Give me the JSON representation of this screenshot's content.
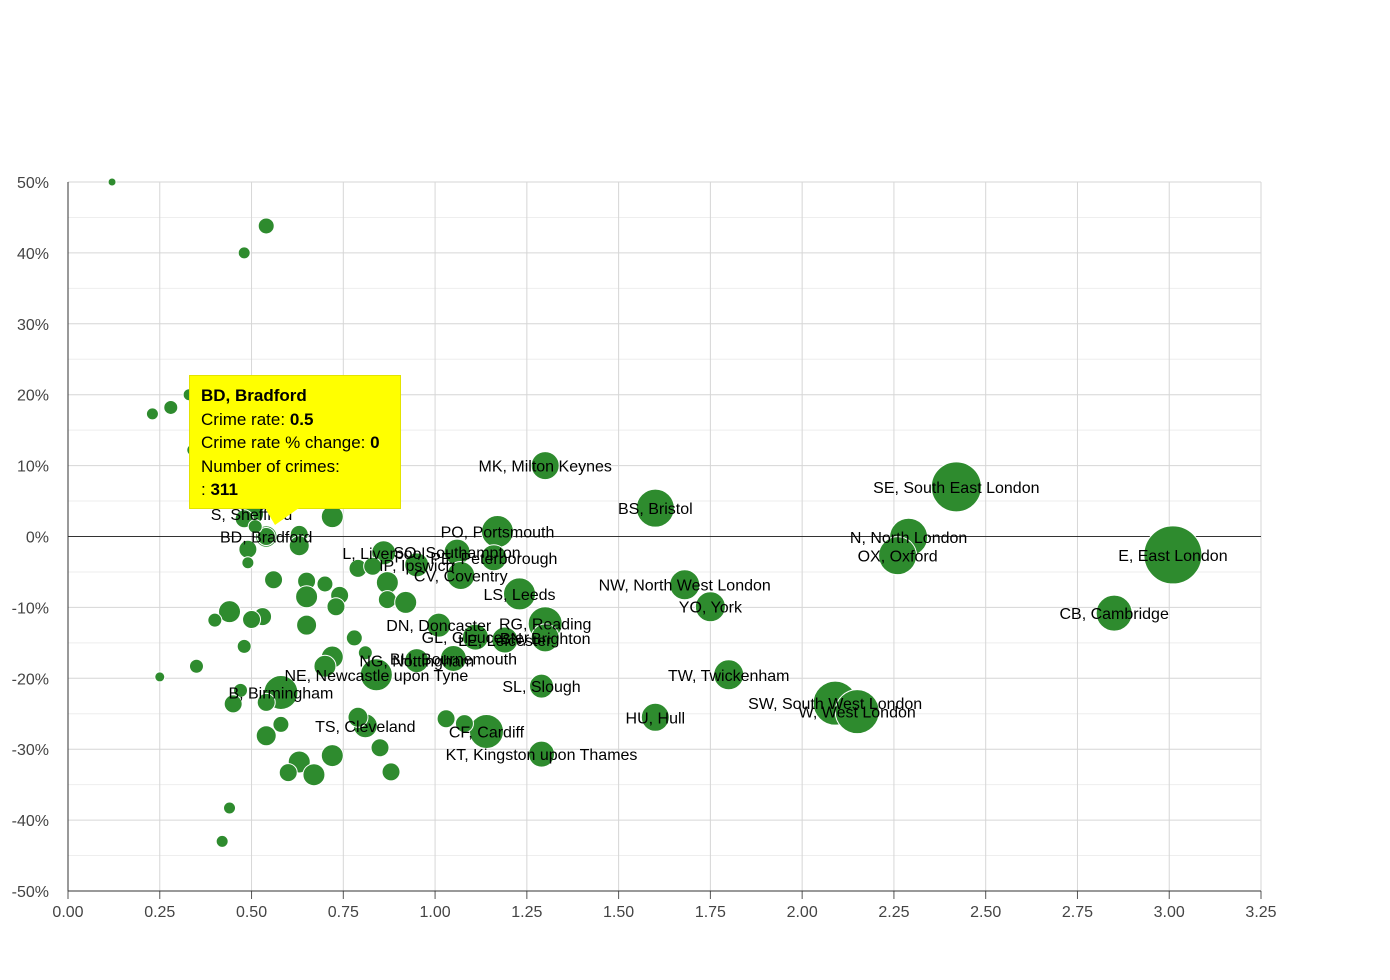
{
  "colors": {
    "bubble": "#2e8b2e",
    "bubble_stroke": "#ffffff",
    "tooltip_bg": "#ffff00",
    "axis": "#333333"
  },
  "chart_data": {
    "type": "scatter",
    "xlim": [
      0,
      3.25
    ],
    "ylim": [
      -50,
      50
    ],
    "x_ticks": [
      "0.00",
      "0.25",
      "0.50",
      "0.75",
      "1.00",
      "1.25",
      "1.50",
      "1.75",
      "2.00",
      "2.25",
      "2.50",
      "2.75",
      "3.00",
      "3.25"
    ],
    "y_ticks": [
      "50%",
      "40%",
      "30%",
      "20%",
      "10%",
      "0%",
      "-10%",
      "-20%",
      "-30%",
      "-40%",
      "-50%"
    ],
    "grid": true,
    "points": [
      {
        "label": "MK, Milton Keynes",
        "x": 1.3,
        "y": 10,
        "r": 14
      },
      {
        "label": "SE, South East London",
        "x": 2.42,
        "y": 7,
        "r": 25
      },
      {
        "label": "BS, Bristol",
        "x": 1.6,
        "y": 4,
        "r": 19
      },
      {
        "label": "PO, Portsmouth",
        "x": 1.17,
        "y": 0.7,
        "r": 16
      },
      {
        "label": "N, North London",
        "x": 2.29,
        "y": -0.1,
        "r": 19
      },
      {
        "label": "OX, Oxford",
        "x": 2.26,
        "y": -2.7,
        "r": 19
      },
      {
        "label": "E, East London",
        "x": 3.01,
        "y": -2.6,
        "r": 29
      },
      {
        "label": "NW, North West London",
        "x": 1.68,
        "y": -6.8,
        "r": 15
      },
      {
        "label": "YO, York",
        "x": 1.75,
        "y": -9.9,
        "r": 15
      },
      {
        "label": "CB, Cambridge",
        "x": 2.85,
        "y": -10.8,
        "r": 18
      },
      {
        "label": "LS, Leeds",
        "x": 1.23,
        "y": -8.1,
        "r": 16
      },
      {
        "label": "RG, Reading",
        "x": 1.3,
        "y": -12.3,
        "r": 17
      },
      {
        "label": "BN, Brighton",
        "x": 1.3,
        "y": -14.3,
        "r": 14
      },
      {
        "label": "SO, Southampton",
        "x": 1.06,
        "y": -2.2,
        "r": 13
      },
      {
        "label": "PE, Peterborough",
        "x": 1.16,
        "y": -3.0,
        "r": 13
      },
      {
        "label": "CV, Coventry",
        "x": 1.07,
        "y": -5.5,
        "r": 14
      },
      {
        "label": "L, Liverpool",
        "x": 0.86,
        "y": -2.3,
        "r": 12
      },
      {
        "label": "IP, Ipswich",
        "x": 0.95,
        "y": -4.0,
        "r": 12
      },
      {
        "label": "DN, Doncaster",
        "x": 1.01,
        "y": -12.5,
        "r": 12
      },
      {
        "label": "GL, Gloucester",
        "x": 1.11,
        "y": -14.2,
        "r": 13
      },
      {
        "label": "LE, Leicester",
        "x": 1.19,
        "y": -14.6,
        "r": 13
      },
      {
        "label": "BH, Bournemouth",
        "x": 1.05,
        "y": -17.2,
        "r": 13
      },
      {
        "label": "NG, Nottingham",
        "x": 0.95,
        "y": -17.5,
        "r": 12
      },
      {
        "label": "NE, Newcastle upon Tyne",
        "x": 0.84,
        "y": -19.5,
        "r": 16
      },
      {
        "label": "B, Birmingham",
        "x": 0.58,
        "y": -22.0,
        "r": 17
      },
      {
        "label": "TS, Cleveland",
        "x": 0.81,
        "y": -26.7,
        "r": 12
      },
      {
        "label": "CF, Cardiff",
        "x": 1.14,
        "y": -27.5,
        "r": 17
      },
      {
        "label": "SL, Slough",
        "x": 1.29,
        "y": -21.1,
        "r": 12
      },
      {
        "label": "KT, Kingston upon Thames",
        "x": 1.29,
        "y": -30.7,
        "r": 13
      },
      {
        "label": "TW, Twickenham",
        "x": 1.8,
        "y": -19.5,
        "r": 15
      },
      {
        "label": "HU, Hull",
        "x": 1.6,
        "y": -25.5,
        "r": 14
      },
      {
        "label": "SW, South West London",
        "x": 2.09,
        "y": -23.5,
        "r": 22
      },
      {
        "label": "W, West London",
        "x": 2.15,
        "y": -24.7,
        "r": 22
      },
      {
        "label": "S, Sheffield",
        "x": 0.5,
        "y": 3.2,
        "r": 12
      },
      {
        "label": "BD, Bradford",
        "x": 0.54,
        "y": 0,
        "r": 11,
        "highlight": true
      },
      {
        "label": "",
        "x": 0.12,
        "y": 50,
        "r": 4
      },
      {
        "label": "",
        "x": 0.54,
        "y": 43.8,
        "r": 8
      },
      {
        "label": "",
        "x": 0.48,
        "y": 40,
        "r": 6
      },
      {
        "label": "",
        "x": 0.33,
        "y": 20,
        "r": 6
      },
      {
        "label": "",
        "x": 0.28,
        "y": 18.2,
        "r": 7
      },
      {
        "label": "",
        "x": 0.23,
        "y": 17.3,
        "r": 6
      },
      {
        "label": "",
        "x": 0.34,
        "y": 12.2,
        "r": 6
      },
      {
        "label": "",
        "x": 0.72,
        "y": 2.8,
        "r": 11
      },
      {
        "label": "",
        "x": 0.48,
        "y": 2.5,
        "r": 9
      },
      {
        "label": "",
        "x": 0.63,
        "y": 0.3,
        "r": 9
      },
      {
        "label": "",
        "x": 0.51,
        "y": 1.4,
        "r": 7
      },
      {
        "label": "",
        "x": 0.63,
        "y": -1.3,
        "r": 10
      },
      {
        "label": "",
        "x": 0.49,
        "y": -1.8,
        "r": 9
      },
      {
        "label": "",
        "x": 0.49,
        "y": -3.7,
        "r": 6
      },
      {
        "label": "",
        "x": 0.56,
        "y": -6.1,
        "r": 9
      },
      {
        "label": "",
        "x": 0.65,
        "y": -6.3,
        "r": 9
      },
      {
        "label": "",
        "x": 0.7,
        "y": -6.7,
        "r": 8
      },
      {
        "label": "",
        "x": 0.65,
        "y": -8.5,
        "r": 11
      },
      {
        "label": "",
        "x": 0.74,
        "y": -8.3,
        "r": 9
      },
      {
        "label": "",
        "x": 0.73,
        "y": -9.9,
        "r": 9
      },
      {
        "label": "",
        "x": 0.87,
        "y": -6.5,
        "r": 11
      },
      {
        "label": "",
        "x": 0.87,
        "y": -8.9,
        "r": 9
      },
      {
        "label": "",
        "x": 0.92,
        "y": -9.3,
        "r": 11
      },
      {
        "label": "",
        "x": 0.79,
        "y": -4.5,
        "r": 9
      },
      {
        "label": "",
        "x": 0.83,
        "y": -4.2,
        "r": 9
      },
      {
        "label": "",
        "x": 0.44,
        "y": -10.6,
        "r": 11
      },
      {
        "label": "",
        "x": 0.4,
        "y": -11.8,
        "r": 7
      },
      {
        "label": "",
        "x": 0.53,
        "y": -11.3,
        "r": 9
      },
      {
        "label": "",
        "x": 0.5,
        "y": -11.7,
        "r": 9
      },
      {
        "label": "",
        "x": 0.65,
        "y": -12.5,
        "r": 10
      },
      {
        "label": "",
        "x": 0.48,
        "y": -15.5,
        "r": 7
      },
      {
        "label": "",
        "x": 0.78,
        "y": -14.3,
        "r": 8
      },
      {
        "label": "",
        "x": 0.81,
        "y": -16.4,
        "r": 7
      },
      {
        "label": "",
        "x": 0.72,
        "y": -17.0,
        "r": 11
      },
      {
        "label": "",
        "x": 0.7,
        "y": -18.3,
        "r": 11
      },
      {
        "label": "",
        "x": 0.35,
        "y": -18.3,
        "r": 7
      },
      {
        "label": "",
        "x": 0.25,
        "y": -19.8,
        "r": 5
      },
      {
        "label": "",
        "x": 0.47,
        "y": -21.7,
        "r": 7
      },
      {
        "label": "",
        "x": 0.45,
        "y": -23.6,
        "r": 9
      },
      {
        "label": "",
        "x": 0.54,
        "y": -23.4,
        "r": 9
      },
      {
        "label": "",
        "x": 0.58,
        "y": -26.5,
        "r": 8
      },
      {
        "label": "",
        "x": 0.54,
        "y": -28.1,
        "r": 10
      },
      {
        "label": "",
        "x": 0.79,
        "y": -25.5,
        "r": 10
      },
      {
        "label": "",
        "x": 1.03,
        "y": -25.7,
        "r": 9
      },
      {
        "label": "",
        "x": 1.08,
        "y": -26.4,
        "r": 9
      },
      {
        "label": "",
        "x": 0.85,
        "y": -29.8,
        "r": 9
      },
      {
        "label": "",
        "x": 0.72,
        "y": -30.9,
        "r": 11
      },
      {
        "label": "",
        "x": 0.63,
        "y": -31.8,
        "r": 11
      },
      {
        "label": "",
        "x": 0.6,
        "y": -33.3,
        "r": 9
      },
      {
        "label": "",
        "x": 0.67,
        "y": -33.6,
        "r": 11
      },
      {
        "label": "",
        "x": 0.88,
        "y": -33.2,
        "r": 9
      },
      {
        "label": "",
        "x": 0.44,
        "y": -38.3,
        "r": 6
      },
      {
        "label": "",
        "x": 0.42,
        "y": -43.0,
        "r": 6
      }
    ],
    "tooltip": {
      "title": "BD, Bradford",
      "rate_label": "Crime rate:",
      "rate_value": "0.5",
      "change_label": "Crime rate % change:",
      "change_value": "0",
      "count_label": "Number of crimes:",
      "count_prefix": ":",
      "count_value": "311"
    }
  }
}
